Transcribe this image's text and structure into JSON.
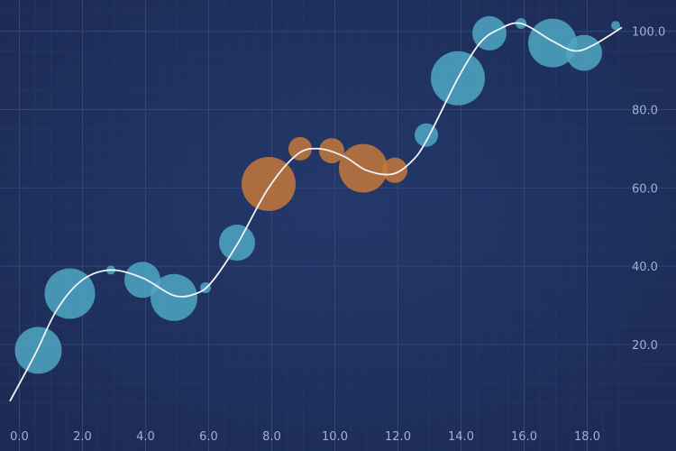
{
  "chart_data": {
    "type": "scatter",
    "title": "",
    "xlabel": "",
    "ylabel": "",
    "xlim": [
      -0.3,
      19.1
    ],
    "ylim": [
      2,
      108
    ],
    "x_ticks": [
      0,
      2,
      4,
      6,
      8,
      10,
      12,
      14,
      16,
      18
    ],
    "y_ticks": [
      20,
      40,
      60,
      80,
      100
    ],
    "tick_decimals": 1,
    "y_axis_side": "right",
    "grid": true,
    "legend": "none",
    "colors": {
      "background_center": "#24386a",
      "background_edge": "#1b2a52",
      "grid_major": "#2f4680",
      "grid_minor": "#26396c",
      "bubble_blue": "#4fa7c3",
      "bubble_orange": "#c4783a",
      "line": "#f2f4f7"
    },
    "bubbles": [
      {
        "x": 0.6,
        "y": 18.5,
        "size": 26,
        "color": "blue"
      },
      {
        "x": 1.6,
        "y": 33.0,
        "size": 28,
        "color": "blue"
      },
      {
        "x": 2.9,
        "y": 39.0,
        "size": 5,
        "color": "blue"
      },
      {
        "x": 3.9,
        "y": 36.5,
        "size": 20,
        "color": "blue"
      },
      {
        "x": 4.9,
        "y": 32.0,
        "size": 26,
        "color": "blue"
      },
      {
        "x": 5.9,
        "y": 34.5,
        "size": 6,
        "color": "blue"
      },
      {
        "x": 6.9,
        "y": 46.0,
        "size": 20,
        "color": "blue"
      },
      {
        "x": 7.9,
        "y": 61.0,
        "size": 30,
        "color": "orange"
      },
      {
        "x": 8.9,
        "y": 70.0,
        "size": 13,
        "color": "orange"
      },
      {
        "x": 9.9,
        "y": 69.5,
        "size": 14,
        "color": "orange"
      },
      {
        "x": 10.9,
        "y": 65.0,
        "size": 27,
        "color": "orange"
      },
      {
        "x": 11.9,
        "y": 64.5,
        "size": 14,
        "color": "orange"
      },
      {
        "x": 12.9,
        "y": 73.5,
        "size": 13,
        "color": "blue"
      },
      {
        "x": 13.9,
        "y": 88.0,
        "size": 30,
        "color": "blue"
      },
      {
        "x": 14.9,
        "y": 99.5,
        "size": 19,
        "color": "blue"
      },
      {
        "x": 15.9,
        "y": 102.0,
        "size": 6,
        "color": "blue"
      },
      {
        "x": 16.9,
        "y": 97.0,
        "size": 27,
        "color": "blue"
      },
      {
        "x": 17.9,
        "y": 94.5,
        "size": 20,
        "color": "blue"
      },
      {
        "x": 18.9,
        "y": 101.5,
        "size": 5,
        "color": "blue"
      }
    ],
    "line": [
      [
        -0.3,
        5.5
      ],
      [
        0.5,
        17.5
      ],
      [
        1.2,
        29
      ],
      [
        2.0,
        36.5
      ],
      [
        2.9,
        39
      ],
      [
        3.9,
        37
      ],
      [
        4.9,
        32.5
      ],
      [
        5.6,
        33
      ],
      [
        6.1,
        36
      ],
      [
        6.9,
        45.5
      ],
      [
        7.9,
        60
      ],
      [
        8.8,
        68.5
      ],
      [
        9.5,
        70
      ],
      [
        10.3,
        68
      ],
      [
        11.0,
        64.5
      ],
      [
        11.8,
        63.5
      ],
      [
        12.4,
        66.5
      ],
      [
        12.9,
        72
      ],
      [
        13.9,
        88
      ],
      [
        14.6,
        97
      ],
      [
        15.2,
        100.5
      ],
      [
        15.9,
        102
      ],
      [
        16.9,
        97.5
      ],
      [
        17.6,
        95
      ],
      [
        18.2,
        96.5
      ],
      [
        19.1,
        101
      ]
    ]
  }
}
